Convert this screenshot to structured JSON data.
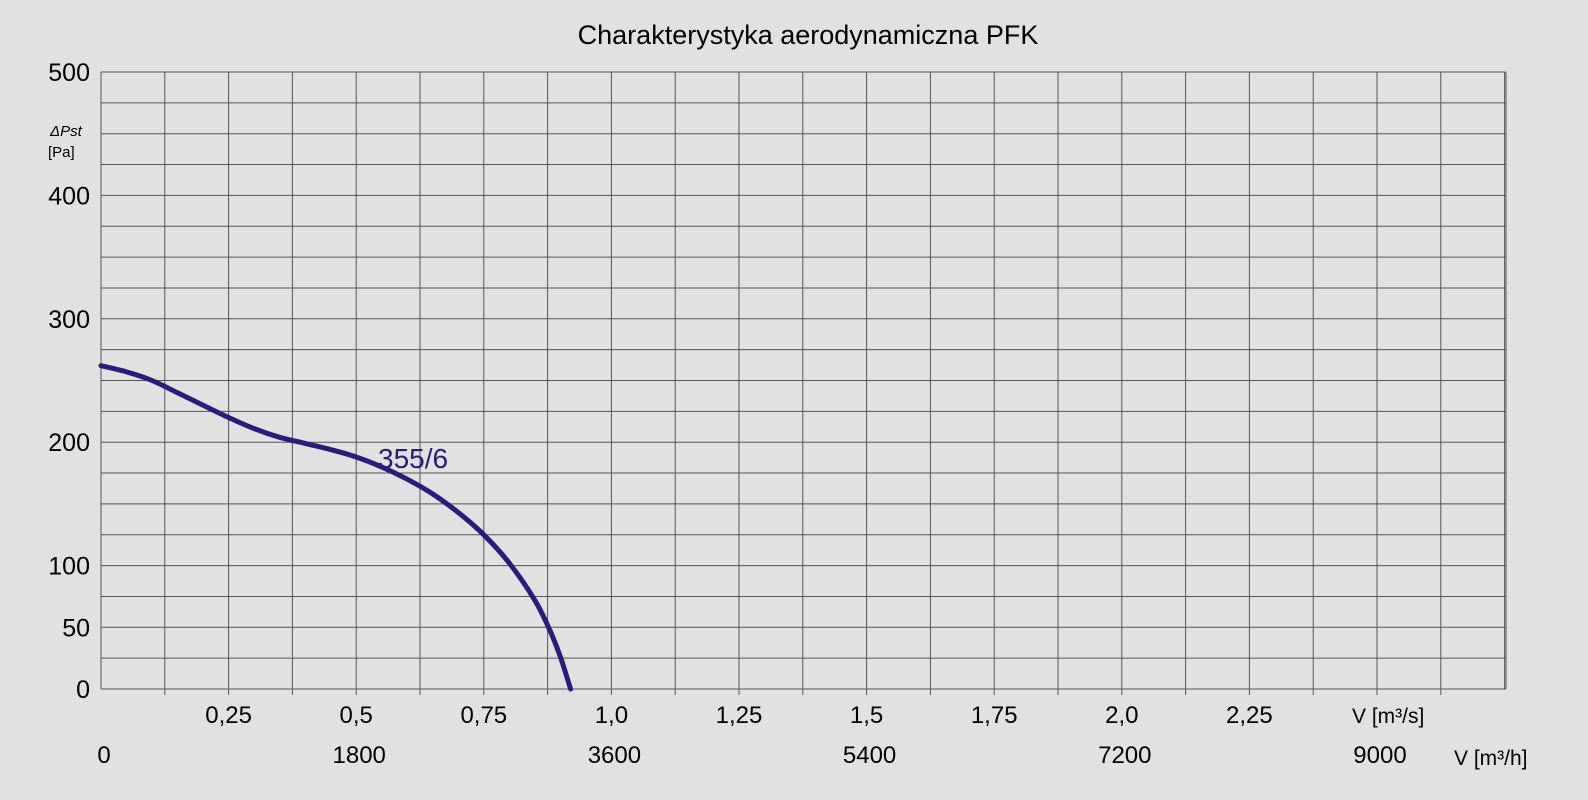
{
  "colors": {
    "background": "#e1e1e1",
    "grid": "#555555",
    "curve": "#2e1a78",
    "text": "#000000"
  },
  "chart_data": {
    "type": "line",
    "title": "Charakterystyka aerodynamiczna PFK",
    "ylabel_symbol": "ΔPst",
    "ylabel_unit": "[Pa]",
    "xlabel_flow_s": "V [m³/s]",
    "xlabel_flow_h": "V [m³/h]",
    "ylim": [
      0,
      500
    ],
    "xlim": [
      0,
      2.75
    ],
    "y_tick_labels": [
      "0",
      "50",
      "100",
      "200",
      "300",
      "400",
      "500"
    ],
    "x_tick_labels_s": [
      "0,25",
      "0,5",
      "0,75",
      "1,0",
      "1,25",
      "1,5",
      "1,75",
      "2,0",
      "2,25"
    ],
    "x_tick_labels_h": [
      "0",
      "1800",
      "3600",
      "5400",
      "7200",
      "9000"
    ],
    "grid": true,
    "series": [
      {
        "name": "355/6",
        "x": [
          0,
          0.05,
          0.1,
          0.15,
          0.2,
          0.25,
          0.3,
          0.35,
          0.4,
          0.45,
          0.5,
          0.55,
          0.6,
          0.65,
          0.7,
          0.75,
          0.8,
          0.85,
          0.88,
          0.9,
          0.92
        ],
        "y": [
          262,
          257,
          250,
          240,
          230,
          220,
          211,
          204,
          199,
          194,
          188,
          180,
          170,
          158,
          143,
          125,
          102,
          72,
          47,
          26,
          0
        ]
      }
    ]
  }
}
